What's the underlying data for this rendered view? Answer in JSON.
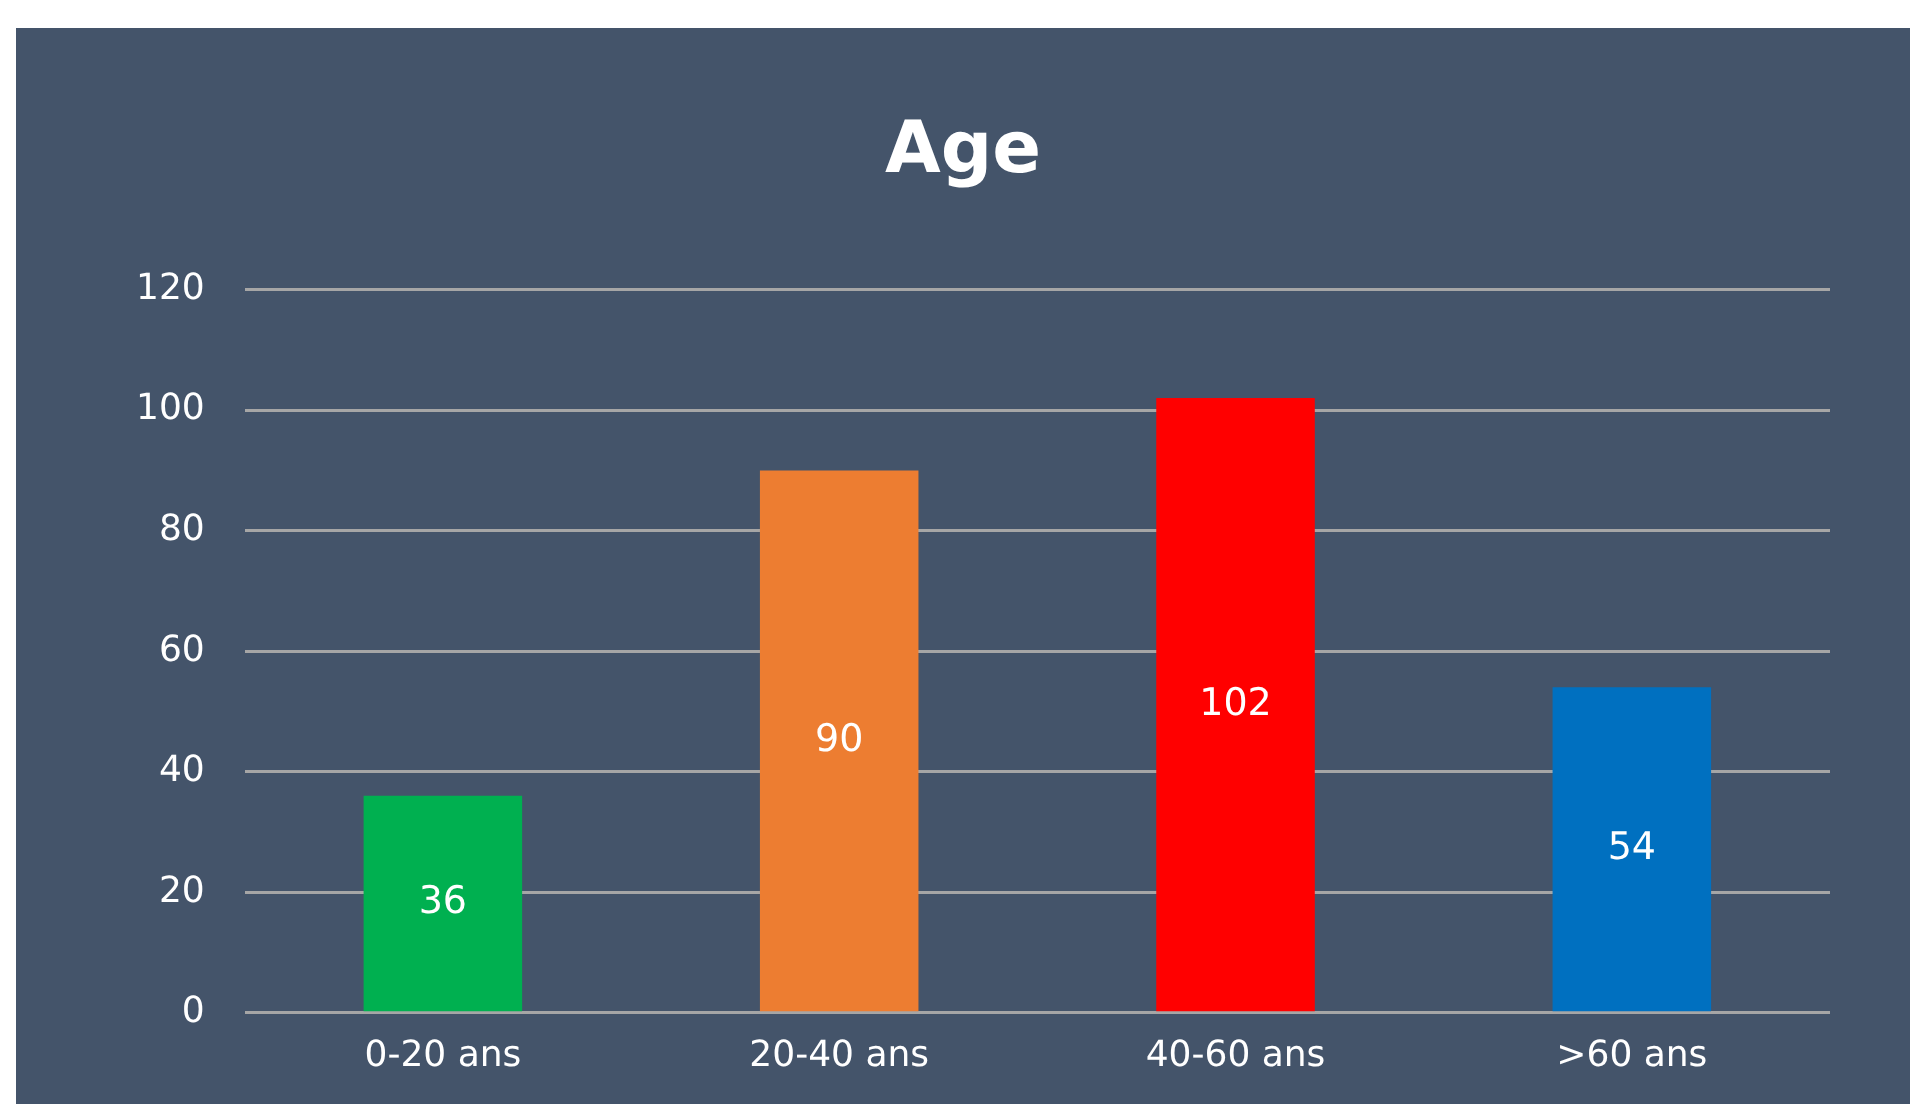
{
  "chart_data": {
    "type": "bar",
    "title": "Age",
    "categories": [
      "0-20 ans",
      "20-40 ans",
      "40-60 ans",
      ">60 ans"
    ],
    "values": [
      36,
      90,
      102,
      54
    ],
    "colors": [
      "#00b050",
      "#ed7d31",
      "#ff0000",
      "#0070c0"
    ],
    "ylim": [
      0,
      120
    ],
    "yticks": [
      0,
      20,
      40,
      60,
      80,
      100,
      120
    ],
    "grid": "y",
    "legend": false,
    "data_labels": true
  }
}
